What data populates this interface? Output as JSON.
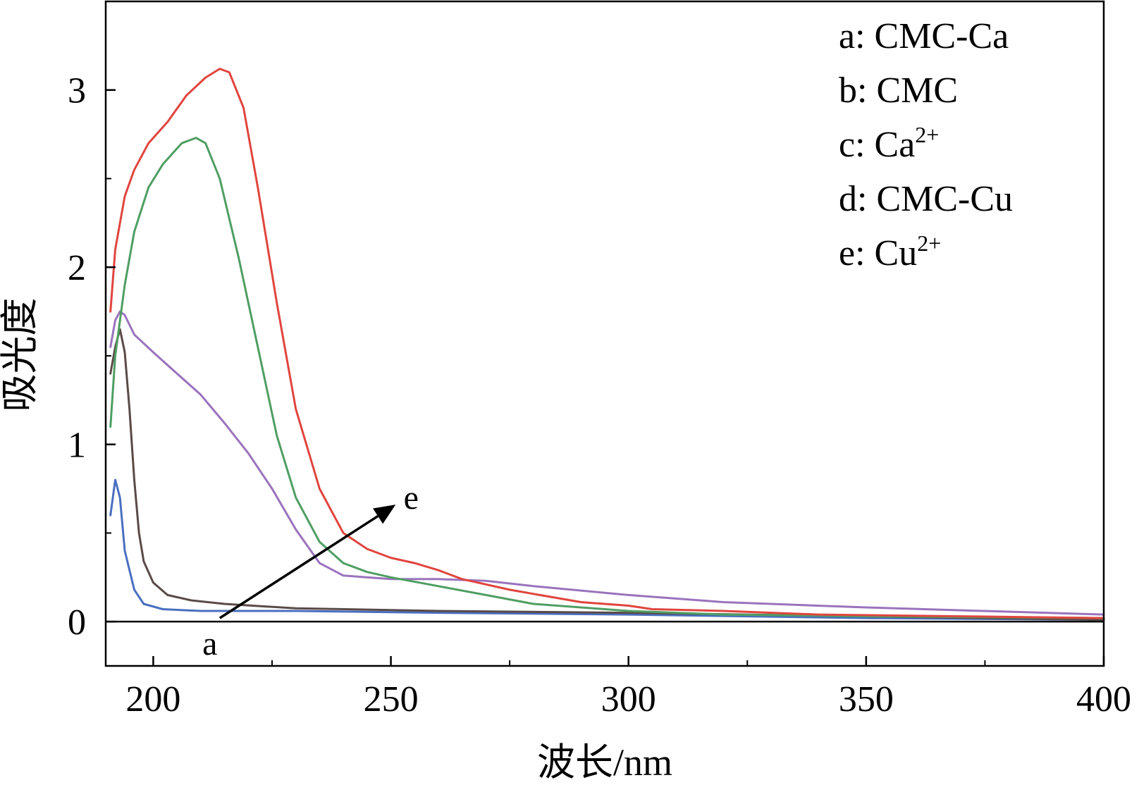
{
  "chart_data": {
    "type": "line",
    "title": "",
    "xlabel": "波长/nm",
    "ylabel": "吸光度",
    "xlim": [
      190,
      400
    ],
    "ylim": [
      -0.25,
      3.5
    ],
    "x_ticks": [
      200,
      250,
      300,
      350,
      400
    ],
    "y_ticks": [
      0,
      1,
      2,
      3
    ],
    "x_tick_labels": [
      "200",
      "250",
      "300",
      "350",
      "400"
    ],
    "y_tick_labels": [
      "0",
      "1",
      "2",
      "3"
    ],
    "grid": false,
    "legend_position": "top-right",
    "legend": [
      {
        "key": "a",
        "label": "CMC-Ca",
        "sup": ""
      },
      {
        "key": "b",
        "label": "CMC",
        "sup": ""
      },
      {
        "key": "c",
        "label": "Ca",
        "sup": "2+"
      },
      {
        "key": "d",
        "label": "CMC-Cu",
        "sup": ""
      },
      {
        "key": "e",
        "label": "Cu",
        "sup": "2+"
      }
    ],
    "annotations": {
      "arrow_start_label": "a",
      "arrow_end_label": "e",
      "arrow_from": [
        214,
        0.02
      ],
      "arrow_to": [
        251,
        0.66
      ]
    },
    "series": [
      {
        "color": "#4a6fc0",
        "points": [
          [
            191,
            0.6
          ],
          [
            192,
            0.8
          ],
          [
            193,
            0.7
          ],
          [
            194,
            0.4
          ],
          [
            196,
            0.18
          ],
          [
            198,
            0.1
          ],
          [
            202,
            0.07
          ],
          [
            210,
            0.06
          ],
          [
            230,
            0.06
          ],
          [
            260,
            0.05
          ],
          [
            300,
            0.04
          ],
          [
            350,
            0.02
          ],
          [
            400,
            0.01
          ]
        ]
      },
      {
        "color": "#5a4a48",
        "points": [
          [
            191,
            1.4
          ],
          [
            192,
            1.55
          ],
          [
            193,
            1.65
          ],
          [
            194,
            1.52
          ],
          [
            195,
            1.2
          ],
          [
            196,
            0.8
          ],
          [
            197,
            0.5
          ],
          [
            198,
            0.34
          ],
          [
            200,
            0.22
          ],
          [
            203,
            0.15
          ],
          [
            208,
            0.12
          ],
          [
            215,
            0.1
          ],
          [
            230,
            0.075
          ],
          [
            260,
            0.06
          ],
          [
            300,
            0.05
          ],
          [
            350,
            0.03
          ],
          [
            400,
            0.01
          ]
        ]
      },
      {
        "color": "#9a73bd",
        "points": [
          [
            191,
            1.55
          ],
          [
            192,
            1.7
          ],
          [
            193,
            1.75
          ],
          [
            194,
            1.73
          ],
          [
            196,
            1.62
          ],
          [
            200,
            1.52
          ],
          [
            205,
            1.4
          ],
          [
            210,
            1.28
          ],
          [
            215,
            1.12
          ],
          [
            220,
            0.95
          ],
          [
            225,
            0.75
          ],
          [
            230,
            0.52
          ],
          [
            235,
            0.33
          ],
          [
            240,
            0.26
          ],
          [
            250,
            0.24
          ],
          [
            260,
            0.24
          ],
          [
            270,
            0.23
          ],
          [
            280,
            0.2
          ],
          [
            300,
            0.15
          ],
          [
            320,
            0.11
          ],
          [
            350,
            0.08
          ],
          [
            400,
            0.04
          ]
        ]
      },
      {
        "color": "#4f9e63",
        "points": [
          [
            191,
            1.1
          ],
          [
            192,
            1.5
          ],
          [
            194,
            1.9
          ],
          [
            196,
            2.2
          ],
          [
            199,
            2.45
          ],
          [
            202,
            2.58
          ],
          [
            206,
            2.7
          ],
          [
            209,
            2.73
          ],
          [
            211,
            2.7
          ],
          [
            214,
            2.5
          ],
          [
            218,
            2.05
          ],
          [
            222,
            1.55
          ],
          [
            226,
            1.05
          ],
          [
            230,
            0.7
          ],
          [
            235,
            0.45
          ],
          [
            240,
            0.33
          ],
          [
            245,
            0.28
          ],
          [
            250,
            0.25
          ],
          [
            260,
            0.2
          ],
          [
            270,
            0.15
          ],
          [
            280,
            0.1
          ],
          [
            300,
            0.06
          ],
          [
            320,
            0.04
          ],
          [
            350,
            0.03
          ],
          [
            400,
            0.02
          ]
        ]
      },
      {
        "color": "#e0453e",
        "points": [
          [
            191,
            1.75
          ],
          [
            192,
            2.1
          ],
          [
            194,
            2.4
          ],
          [
            196,
            2.55
          ],
          [
            199,
            2.7
          ],
          [
            203,
            2.82
          ],
          [
            207,
            2.97
          ],
          [
            211,
            3.07
          ],
          [
            214,
            3.12
          ],
          [
            216,
            3.1
          ],
          [
            219,
            2.9
          ],
          [
            222,
            2.45
          ],
          [
            226,
            1.8
          ],
          [
            230,
            1.2
          ],
          [
            235,
            0.75
          ],
          [
            240,
            0.5
          ],
          [
            245,
            0.41
          ],
          [
            250,
            0.36
          ],
          [
            255,
            0.33
          ],
          [
            260,
            0.29
          ],
          [
            265,
            0.24
          ],
          [
            275,
            0.18
          ],
          [
            290,
            0.11
          ],
          [
            300,
            0.09
          ],
          [
            305,
            0.07
          ],
          [
            320,
            0.06
          ],
          [
            340,
            0.04
          ],
          [
            370,
            0.03
          ],
          [
            400,
            0.02
          ]
        ]
      }
    ]
  }
}
